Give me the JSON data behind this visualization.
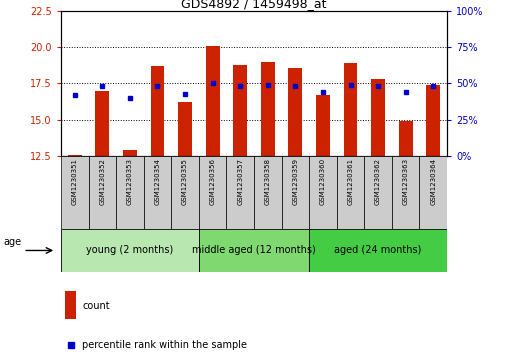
{
  "title": "GDS4892 / 1459498_at",
  "samples": [
    "GSM1230351",
    "GSM1230352",
    "GSM1230353",
    "GSM1230354",
    "GSM1230355",
    "GSM1230356",
    "GSM1230357",
    "GSM1230358",
    "GSM1230359",
    "GSM1230360",
    "GSM1230361",
    "GSM1230362",
    "GSM1230363",
    "GSM1230364"
  ],
  "bar_values": [
    12.6,
    17.0,
    12.9,
    18.7,
    16.2,
    20.1,
    18.8,
    19.0,
    18.6,
    16.7,
    18.9,
    17.8,
    14.9,
    17.4
  ],
  "bar_base": 12.5,
  "percentile_pct": [
    42,
    48,
    40,
    48,
    43,
    50,
    48,
    49,
    48,
    44,
    49,
    48,
    44,
    48
  ],
  "bar_color": "#cc2200",
  "percentile_color": "#0000cc",
  "ylim": [
    12.5,
    22.5
  ],
  "yticks": [
    12.5,
    15.0,
    17.5,
    20.0,
    22.5
  ],
  "y2lim": [
    0,
    100
  ],
  "y2ticks": [
    0,
    25,
    50,
    75,
    100
  ],
  "y2ticklabels": [
    "0%",
    "25%",
    "50%",
    "75%",
    "100%"
  ],
  "gridlines": [
    15.0,
    17.5,
    20.0
  ],
  "groups": [
    {
      "label": "young (2 months)",
      "start": 0,
      "end": 5,
      "color": "#b8e8b0"
    },
    {
      "label": "middle aged (12 months)",
      "start": 5,
      "end": 9,
      "color": "#80d870"
    },
    {
      "label": "aged (24 months)",
      "start": 9,
      "end": 14,
      "color": "#44cc44"
    }
  ],
  "age_label": "age",
  "legend_count_label": "count",
  "legend_percentile_label": "percentile rank within the sample",
  "tick_color_left": "#cc2200",
  "tick_color_right": "#0000cc",
  "sample_bg": "#cccccc",
  "title_fontsize": 9,
  "tick_fontsize": 7,
  "sample_fontsize": 5,
  "group_fontsize": 7,
  "legend_fontsize": 7
}
